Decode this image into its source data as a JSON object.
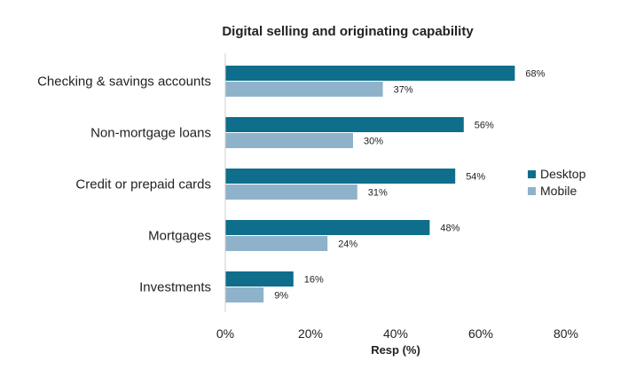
{
  "chart_data": {
    "type": "bar",
    "orientation": "horizontal",
    "title": "Digital selling and originating capability",
    "xlabel": "Resp (%)",
    "ylabel": "",
    "xlim": [
      0,
      80
    ],
    "x_ticks": [
      "0%",
      "20%",
      "40%",
      "60%",
      "80%"
    ],
    "x_tick_values": [
      0,
      20,
      40,
      60,
      80
    ],
    "grid": false,
    "legend_position": "right",
    "categories": [
      "Checking & savings accounts",
      "Non-mortgage loans",
      "Credit or prepaid cards",
      "Mortgages",
      "Investments"
    ],
    "series": [
      {
        "name": "Desktop",
        "color": "#0e6e8c",
        "values": [
          68,
          56,
          54,
          48,
          16
        ],
        "labels": [
          "68%",
          "56%",
          "54%",
          "48%",
          "16%"
        ]
      },
      {
        "name": "Mobile",
        "color": "#8fb2cb",
        "values": [
          37,
          30,
          31,
          24,
          9
        ],
        "labels": [
          "37%",
          "30%",
          "31%",
          "24%",
          "9%"
        ]
      }
    ]
  }
}
